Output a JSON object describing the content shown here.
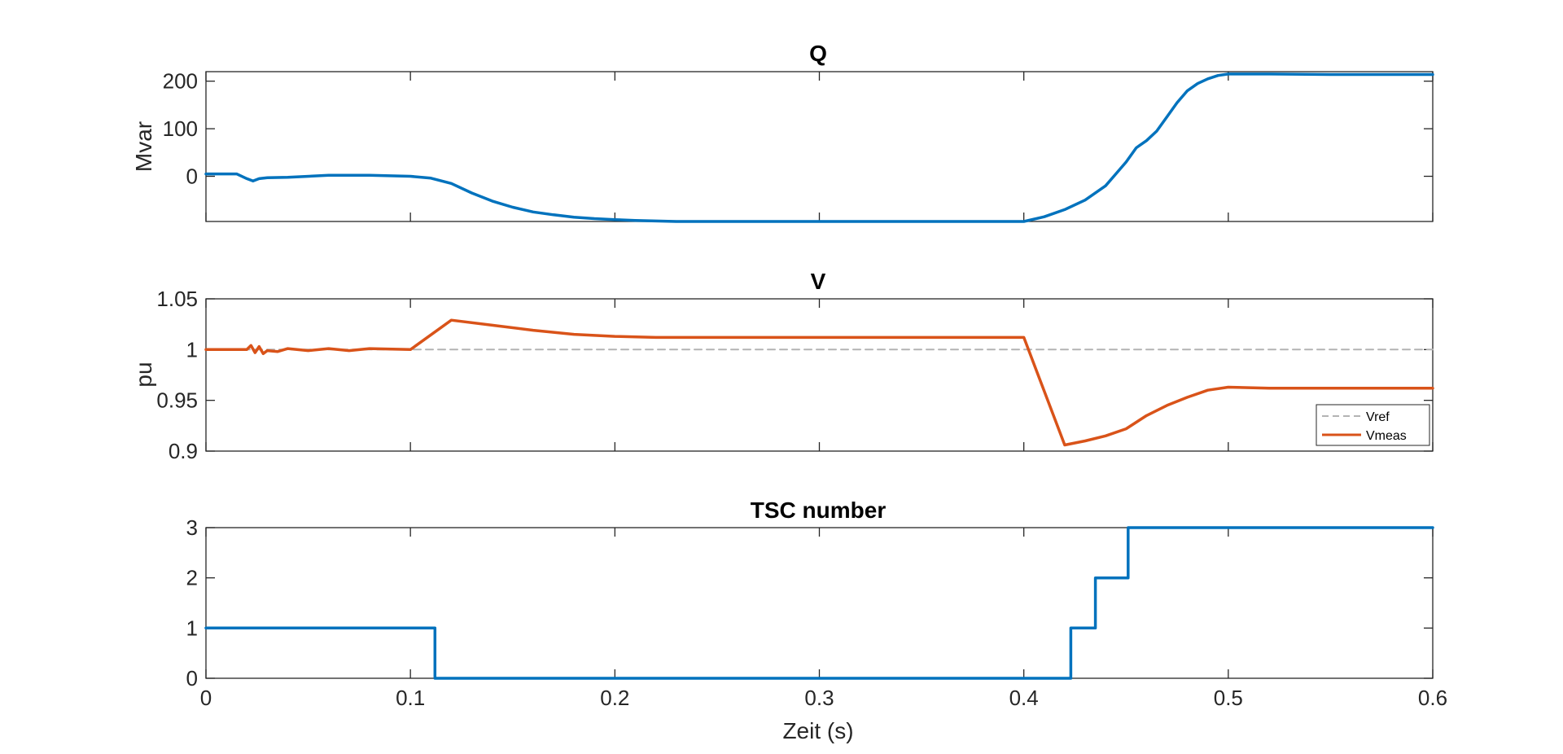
{
  "chart_data": [
    {
      "type": "line",
      "title": "Q",
      "xlabel": "",
      "ylabel": "Mvar",
      "xlim": [
        0,
        0.6
      ],
      "ylim": [
        -95,
        220
      ],
      "xticks": [
        0,
        0.1,
        0.2,
        0.3,
        0.4,
        0.5,
        0.6
      ],
      "xtick_labels_visible": false,
      "yticks": [
        0,
        100,
        200
      ],
      "ytick_labels": [
        "0",
        "100",
        "200"
      ],
      "grid": false,
      "series": [
        {
          "name": "",
          "color": "#0072BD",
          "x": [
            0,
            0.015,
            0.02,
            0.023,
            0.026,
            0.03,
            0.04,
            0.06,
            0.08,
            0.1,
            0.11,
            0.12,
            0.13,
            0.14,
            0.15,
            0.16,
            0.17,
            0.18,
            0.19,
            0.2,
            0.21,
            0.22,
            0.23,
            0.25,
            0.3,
            0.35,
            0.4,
            0.41,
            0.42,
            0.43,
            0.44,
            0.445,
            0.45,
            0.455,
            0.46,
            0.465,
            0.47,
            0.475,
            0.48,
            0.485,
            0.49,
            0.495,
            0.5,
            0.52,
            0.55,
            0.6
          ],
          "y": [
            5,
            5,
            -5,
            -10,
            -5,
            -3,
            -2,
            2,
            2,
            0,
            -4,
            -15,
            -35,
            -52,
            -65,
            -75,
            -81,
            -86,
            -89,
            -91,
            -93,
            -94,
            -95,
            -95,
            -95,
            -95,
            -95,
            -85,
            -70,
            -50,
            -20,
            5,
            30,
            60,
            75,
            95,
            125,
            155,
            180,
            195,
            205,
            212,
            215,
            215,
            214,
            214
          ]
        }
      ]
    },
    {
      "type": "line",
      "title": "V",
      "xlabel": "",
      "ylabel": "pu",
      "xlim": [
        0,
        0.6
      ],
      "ylim": [
        0.9,
        1.05
      ],
      "xticks": [
        0,
        0.1,
        0.2,
        0.3,
        0.4,
        0.5,
        0.6
      ],
      "xtick_labels_visible": false,
      "yticks": [
        0.9,
        0.95,
        1,
        1.05
      ],
      "ytick_labels": [
        "0.9",
        "0.95",
        "1",
        "1.05"
      ],
      "grid": false,
      "legend": {
        "placement": "bottom-right",
        "entries": [
          "Vref",
          "Vmeas"
        ]
      },
      "series": [
        {
          "name": "Vref",
          "color": "#B3B3B3",
          "style": "dashed",
          "x": [
            0,
            0.6
          ],
          "y": [
            1,
            1
          ]
        },
        {
          "name": "Vmeas",
          "color": "#D95319",
          "style": "solid",
          "x": [
            0,
            0.02,
            0.022,
            0.024,
            0.026,
            0.028,
            0.03,
            0.035,
            0.04,
            0.05,
            0.06,
            0.07,
            0.08,
            0.1,
            0.12,
            0.14,
            0.16,
            0.18,
            0.2,
            0.22,
            0.3,
            0.4,
            0.42,
            0.43,
            0.44,
            0.45,
            0.46,
            0.47,
            0.48,
            0.49,
            0.5,
            0.52,
            0.55,
            0.6
          ],
          "y": [
            1,
            1,
            1.004,
            0.997,
            1.003,
            0.996,
            0.999,
            0.998,
            1.001,
            0.999,
            1.001,
            0.999,
            1.001,
            1.0,
            1.029,
            1.024,
            1.019,
            1.015,
            1.013,
            1.012,
            1.012,
            1.012,
            0.906,
            0.91,
            0.915,
            0.922,
            0.935,
            0.945,
            0.953,
            0.96,
            0.963,
            0.962,
            0.962,
            0.962
          ]
        }
      ]
    },
    {
      "type": "line",
      "title": "TSC number",
      "xlabel": "Zeit (s)",
      "ylabel": "",
      "xlim": [
        0,
        0.6
      ],
      "ylim": [
        0,
        3
      ],
      "xticks": [
        0,
        0.1,
        0.2,
        0.3,
        0.4,
        0.5,
        0.6
      ],
      "xtick_labels": [
        "0",
        "0.1",
        "0.2",
        "0.3",
        "0.4",
        "0.5",
        "0.6"
      ],
      "yticks": [
        0,
        1,
        2,
        3
      ],
      "ytick_labels": [
        "0",
        "1",
        "2",
        "3"
      ],
      "grid": false,
      "series": [
        {
          "name": "",
          "color": "#0072BD",
          "style": "step",
          "x": [
            0,
            0.112,
            0.112,
            0.423,
            0.423,
            0.435,
            0.435,
            0.451,
            0.451,
            0.6
          ],
          "y": [
            1,
            1,
            0,
            0,
            1,
            1,
            2,
            2,
            3,
            3
          ]
        }
      ]
    }
  ]
}
